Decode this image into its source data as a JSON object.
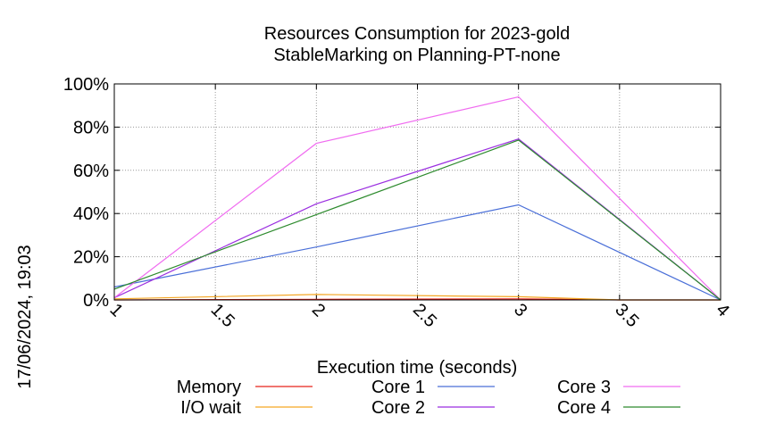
{
  "chart_data": {
    "type": "line",
    "title": [
      "Resources Consumption for 2023-gold",
      "StableMarking on Planning-PT-none"
    ],
    "xlabel": "Execution time (seconds)",
    "ylabel": "",
    "xlim": [
      1,
      4
    ],
    "ylim": [
      0,
      100
    ],
    "x_ticks": [
      "1",
      "1.5",
      "2",
      "2.5",
      "3",
      "3.5",
      "4"
    ],
    "y_ticks": [
      "0%",
      "20%",
      "40%",
      "60%",
      "80%",
      "100%"
    ],
    "grid": true,
    "legend_position": "bottom",
    "timestamp": "17/06/2024, 19:03",
    "series": [
      {
        "name": "Memory",
        "color": "#e8231a",
        "x": [
          1,
          2,
          3,
          3.5,
          4
        ],
        "y": [
          0,
          0.3,
          0.5,
          0,
          0
        ]
      },
      {
        "name": "I/O wait",
        "color": "#f5a623",
        "x": [
          1,
          2,
          3,
          3.5,
          4
        ],
        "y": [
          0.5,
          2.5,
          1.5,
          0,
          0
        ]
      },
      {
        "name": "Core 1",
        "color": "#4a6fd8",
        "x": [
          1,
          2,
          3,
          4
        ],
        "y": [
          6,
          24.5,
          44,
          0
        ]
      },
      {
        "name": "Core 2",
        "color": "#9b2fe0",
        "x": [
          1,
          2,
          3,
          4
        ],
        "y": [
          1,
          44.5,
          74.5,
          0
        ]
      },
      {
        "name": "Core 3",
        "color": "#f06cf0",
        "x": [
          1,
          2,
          3,
          4
        ],
        "y": [
          1,
          72.5,
          94,
          0
        ]
      },
      {
        "name": "Core 4",
        "color": "#2e8b2e",
        "x": [
          1,
          2,
          3,
          4
        ],
        "y": [
          5,
          39.5,
          74,
          0
        ]
      }
    ]
  }
}
